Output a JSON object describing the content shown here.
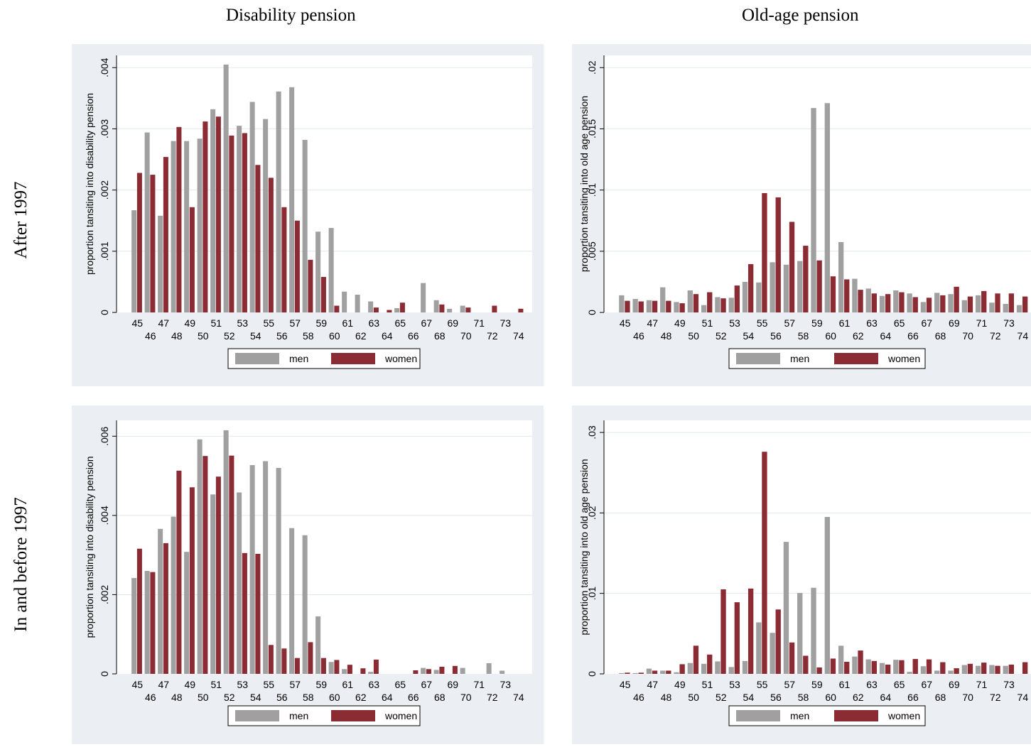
{
  "titles": {
    "col_left": "Disability pension",
    "col_right": "Old-age pension",
    "row_top": "After 1997",
    "row_bottom": "In and before 1997"
  },
  "colors": {
    "men": "#a0a0a0",
    "women": "#8b2c35",
    "grid": "#e3e8ed",
    "panel_bg": "#ebeff3"
  },
  "chart_data": [
    {
      "type": "bar",
      "ylabel": "proportion tansiting into disability pension",
      "ylim": [
        0,
        0.0042
      ],
      "yticks": [
        0,
        0.001,
        0.002,
        0.003,
        0.004
      ],
      "ytick_labels": [
        "0",
        ".001",
        ".002",
        ".003",
        ".004"
      ],
      "categories": [
        "45",
        "46",
        "47",
        "48",
        "49",
        "50",
        "51",
        "52",
        "53",
        "54",
        "55",
        "56",
        "57",
        "58",
        "59",
        "60",
        "61",
        "62",
        "63",
        "64",
        "65",
        "66",
        "67",
        "68",
        "69",
        "70",
        "71",
        "72",
        "73",
        "74"
      ],
      "legend": [
        "men",
        "women"
      ],
      "series": [
        {
          "name": "men",
          "values": [
            0.00167,
            0.00294,
            0.00158,
            0.0028,
            0.0028,
            0.00284,
            0.00332,
            0.00405,
            0.00305,
            0.00344,
            0.00316,
            0.00361,
            0.00368,
            0.00282,
            0.00132,
            0.00138,
            0.00034,
            0.00029,
            0.00018,
            0,
            7e-05,
            0,
            0.00048,
            0.0002,
            6e-05,
            0.00011,
            0,
            0,
            0,
            0
          ]
        },
        {
          "name": "women",
          "values": [
            0.00228,
            0.00225,
            0.00254,
            0.00303,
            0.00172,
            0.00312,
            0.0032,
            0.00289,
            0.00293,
            0.00241,
            0.0022,
            0.00172,
            0.0015,
            0.00086,
            0.00058,
            0.00011,
            0,
            0,
            8e-05,
            4e-05,
            0.00016,
            0,
            0,
            0.00013,
            0,
            8e-05,
            0,
            0.00011,
            0,
            6e-05
          ]
        }
      ]
    },
    {
      "type": "bar",
      "ylabel": "proportion tansiting into old age pension",
      "ylim": [
        0,
        0.021
      ],
      "yticks": [
        0,
        0.005,
        0.01,
        0.015,
        0.02
      ],
      "ytick_labels": [
        "0",
        ".005",
        ".01",
        ".015",
        ".02"
      ],
      "categories": [
        "45",
        "46",
        "47",
        "48",
        "49",
        "50",
        "51",
        "52",
        "53",
        "54",
        "55",
        "56",
        "57",
        "58",
        "59",
        "60",
        "61",
        "62",
        "63",
        "64",
        "65",
        "66",
        "67",
        "68",
        "69",
        "70",
        "71",
        "72",
        "73",
        "74"
      ],
      "legend": [
        "men",
        "women"
      ],
      "series": [
        {
          "name": "men",
          "values": [
            0.0014,
            0.0011,
            0.001,
            0.00205,
            0.00085,
            0.0018,
            0.0006,
            0.00125,
            0.0012,
            0.0025,
            0.00245,
            0.0041,
            0.0039,
            0.0042,
            0.0167,
            0.0171,
            0.00575,
            0.00275,
            0.00195,
            0.00135,
            0.0018,
            0.00155,
            0.00085,
            0.0016,
            0.0015,
            0.001,
            0.0014,
            0.0008,
            0.0007,
            0.0006
          ]
        },
        {
          "name": "women",
          "values": [
            0.00095,
            0.0009,
            0.00095,
            0.00095,
            0.00075,
            0.0015,
            0.00165,
            0.00115,
            0.0022,
            0.00395,
            0.00975,
            0.0094,
            0.0074,
            0.00545,
            0.00425,
            0.00295,
            0.0027,
            0.00185,
            0.00155,
            0.0015,
            0.00165,
            0.00125,
            0.0012,
            0.0014,
            0.0021,
            0.0013,
            0.00175,
            0.00155,
            0.00155,
            0.0013
          ]
        }
      ]
    },
    {
      "type": "bar",
      "ylabel": "proportion tansiting into disability pension",
      "ylim": [
        0,
        0.0064
      ],
      "yticks": [
        0,
        0.002,
        0.004,
        0.006
      ],
      "ytick_labels": [
        "0",
        ".002",
        ".004",
        ".006"
      ],
      "categories": [
        "45",
        "46",
        "47",
        "48",
        "49",
        "50",
        "51",
        "52",
        "53",
        "54",
        "55",
        "56",
        "57",
        "58",
        "59",
        "60",
        "61",
        "62",
        "63",
        "64",
        "65",
        "66",
        "67",
        "68",
        "69",
        "70",
        "71",
        "72",
        "73",
        "74"
      ],
      "legend": [
        "men",
        "women"
      ],
      "series": [
        {
          "name": "men",
          "values": [
            0.00242,
            0.0026,
            0.00366,
            0.00397,
            0.00308,
            0.00592,
            0.00453,
            0.00615,
            0.00458,
            0.00527,
            0.00537,
            0.0052,
            0.00368,
            0.0035,
            0.00145,
            0.0003,
            0.00012,
            0,
            5e-05,
            0,
            0,
            0,
            0.00015,
            0.0001,
            0,
            0.00015,
            0,
            0.00027,
            8e-05,
            0
          ]
        },
        {
          "name": "women",
          "values": [
            0.00316,
            0.00257,
            0.0033,
            0.00513,
            0.00471,
            0.0055,
            0.00498,
            0.00551,
            0.00305,
            0.00303,
            0.00073,
            0.00064,
            0.0004,
            0.0008,
            0.0004,
            0.00035,
            0.00023,
            0.00014,
            0.00036,
            0,
            0,
            9e-05,
            0.00012,
            0.00018,
            0.0002,
            0,
            0,
            0,
            0,
            0
          ]
        }
      ]
    },
    {
      "type": "bar",
      "ylabel": "proportion tansiting into old age pension",
      "ylim": [
        0,
        0.0315
      ],
      "yticks": [
        0,
        0.01,
        0.02,
        0.03
      ],
      "ytick_labels": [
        "0",
        ".01",
        ".02",
        ".03"
      ],
      "categories": [
        "45",
        "46",
        "47",
        "48",
        "49",
        "50",
        "51",
        "52",
        "53",
        "54",
        "55",
        "56",
        "57",
        "58",
        "59",
        "60",
        "61",
        "62",
        "63",
        "64",
        "65",
        "66",
        "67",
        "68",
        "69",
        "70",
        "71",
        "72",
        "73",
        "74"
      ],
      "legend": [
        "men",
        "women"
      ],
      "series": [
        {
          "name": "men",
          "values": [
            0.0001,
            0.0001,
            0.00065,
            0.0004,
            0.0002,
            0.00135,
            0.00125,
            0.00155,
            0.00085,
            0.0016,
            0.0064,
            0.0051,
            0.0164,
            0.01005,
            0.0107,
            0.0195,
            0.0035,
            0.00215,
            0.0018,
            0.00135,
            0.00175,
            0.00025,
            0.00095,
            0.0004,
            0.0004,
            0.0011,
            0.001,
            0.0011,
            0.001,
            0
          ]
        },
        {
          "name": "women",
          "values": [
            0.00015,
            0.00015,
            0.0004,
            0.0004,
            0.0012,
            0.0035,
            0.0024,
            0.0105,
            0.0089,
            0.0106,
            0.0276,
            0.008,
            0.0039,
            0.00225,
            0.0008,
            0.0019,
            0.0015,
            0.0029,
            0.0016,
            0.00115,
            0.0017,
            0.00185,
            0.0018,
            0.00145,
            0.0007,
            0.00125,
            0.0014,
            0.001,
            0.00115,
            0.00145
          ]
        }
      ]
    }
  ]
}
